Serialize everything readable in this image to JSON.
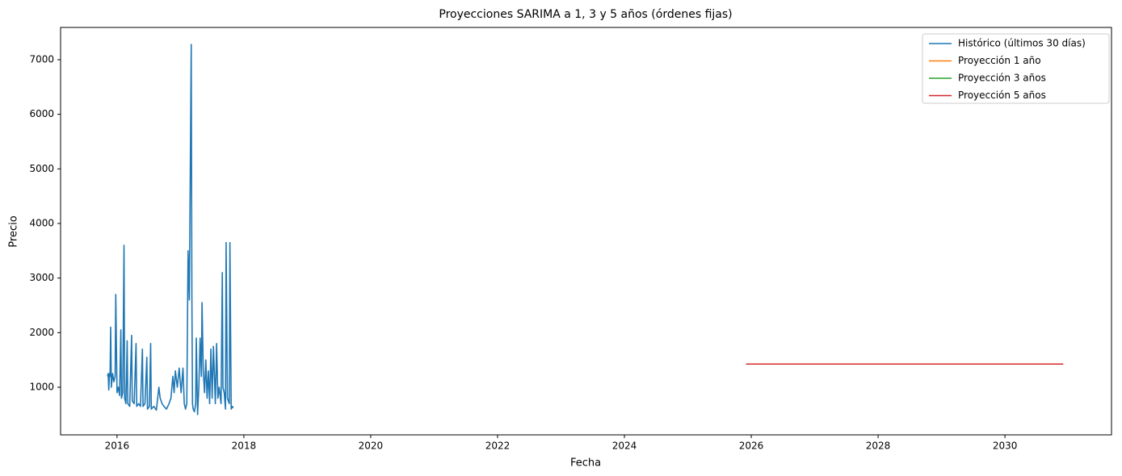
{
  "chart_data": {
    "type": "line",
    "title": "Proyecciones SARIMA a 1, 3 y 5 años (órdenes fijas)",
    "xlabel": "Fecha",
    "ylabel": "Precio",
    "xlim": [
      2015.11,
      2031.68
    ],
    "xticks": [
      2016,
      2018,
      2020,
      2022,
      2024,
      2026,
      2028,
      2030
    ],
    "ylim": [
      128,
      7591
    ],
    "yticks": [
      1000,
      2000,
      3000,
      4000,
      5000,
      6000,
      7000
    ],
    "legend": "upper right",
    "grid": false,
    "series": [
      {
        "name": "Histórico (últimos 30 días)",
        "color": "#1f77b4",
        "x": [
          2015.85,
          2015.86,
          2015.87,
          2015.88,
          2015.89,
          2015.9,
          2015.91,
          2015.93,
          2015.95,
          2015.97,
          2015.98,
          2016.0,
          2016.02,
          2016.04,
          2016.06,
          2016.07,
          2016.09,
          2016.11,
          2016.12,
          2016.14,
          2016.16,
          2016.17,
          2016.2,
          2016.23,
          2016.24,
          2016.27,
          2016.3,
          2016.31,
          2016.34,
          2016.37,
          2016.4,
          2016.41,
          2016.44,
          2016.47,
          2016.48,
          2016.51,
          2016.53,
          2016.54,
          2016.58,
          2016.62,
          2016.66,
          2016.68,
          2016.71,
          2016.74,
          2016.78,
          2016.82,
          2016.85,
          2016.88,
          2016.9,
          2016.92,
          2016.95,
          2016.98,
          2017.01,
          2017.04,
          2017.06,
          2017.08,
          2017.1,
          2017.12,
          2017.14,
          2017.17,
          2017.18,
          2017.19,
          2017.2,
          2017.22,
          2017.24,
          2017.25,
          2017.27,
          2017.29,
          2017.31,
          2017.33,
          2017.34,
          2017.36,
          2017.38,
          2017.4,
          2017.42,
          2017.44,
          2017.46,
          2017.48,
          2017.5,
          2017.52,
          2017.55,
          2017.57,
          2017.59,
          2017.61,
          2017.64,
          2017.66,
          2017.67,
          2017.69,
          2017.71,
          2017.72,
          2017.74,
          2017.77,
          2017.78,
          2017.8,
          2017.82,
          2017.83
        ],
        "values": [
          1200,
          1250,
          950,
          1250,
          1200,
          2100,
          1000,
          1250,
          1100,
          1200,
          2700,
          900,
          1000,
          850,
          2050,
          800,
          900,
          3600,
          800,
          700,
          1850,
          700,
          650,
          1950,
          750,
          700,
          1800,
          650,
          700,
          650,
          1700,
          650,
          700,
          1550,
          600,
          650,
          1800,
          600,
          650,
          580,
          1000,
          800,
          700,
          650,
          600,
          700,
          800,
          1200,
          900,
          1300,
          1000,
          1350,
          900,
          1350,
          700,
          600,
          700,
          3500,
          2600,
          7280,
          2700,
          700,
          600,
          550,
          700,
          1900,
          500,
          1000,
          1900,
          1200,
          2550,
          1300,
          900,
          1500,
          800,
          1300,
          700,
          1700,
          800,
          1750,
          700,
          1800,
          800,
          1000,
          700,
          3100,
          1000,
          900,
          600,
          3650,
          800,
          700,
          3650,
          600,
          650,
          620
        ]
      },
      {
        "name": "Proyección 1 año",
        "color": "#ff7f0e",
        "x": [
          2025.92,
          2026.92
        ],
        "values": [
          1425,
          1425
        ]
      },
      {
        "name": "Proyección 3 años",
        "color": "#2ca02c",
        "x": [
          2025.92,
          2028.92
        ],
        "values": [
          1425,
          1425
        ]
      },
      {
        "name": "Proyección 5 años",
        "color": "#d62728",
        "x": [
          2025.92,
          2030.92
        ],
        "values": [
          1425,
          1425
        ]
      }
    ]
  }
}
